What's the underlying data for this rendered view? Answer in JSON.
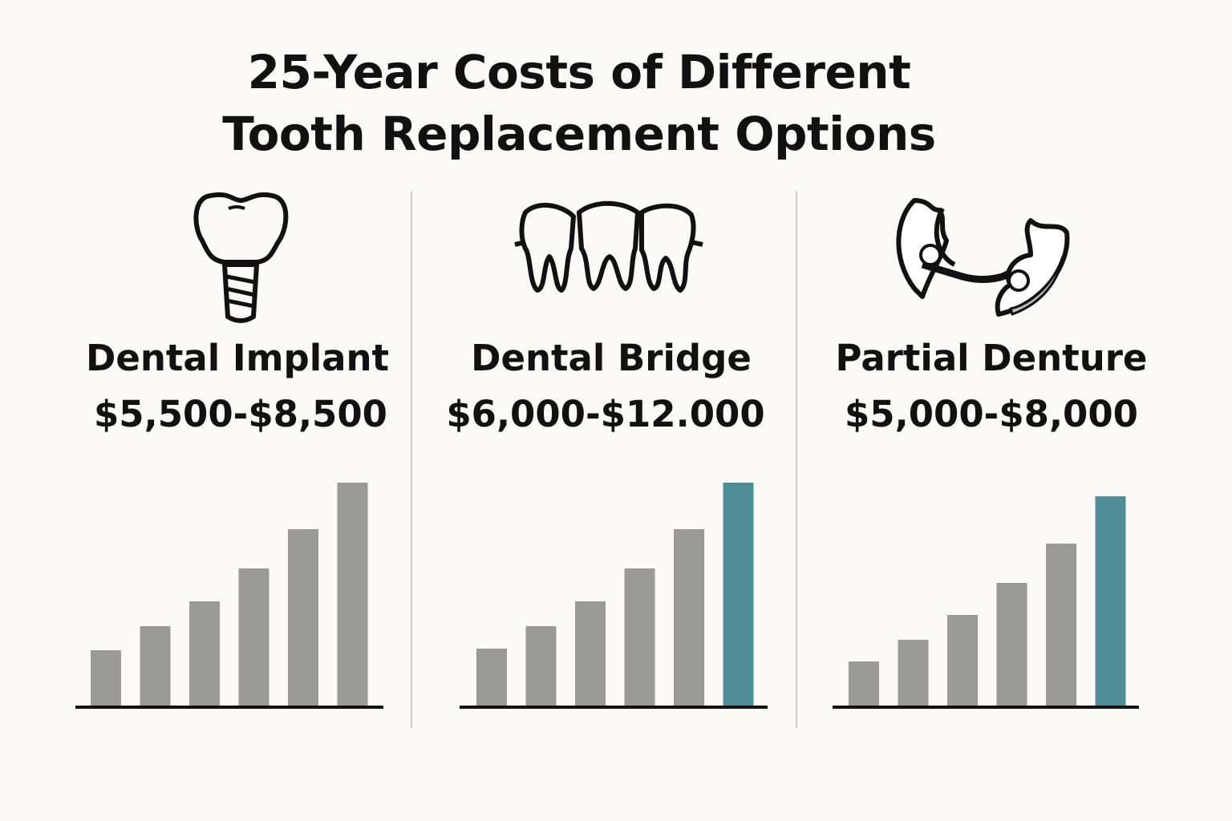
{
  "title": "25-Year Costs of Different Tooth Replacement Options",
  "chart_data": [
    {
      "type": "bar",
      "title": "Dental Implant",
      "subtitle": "$5,500-$8,500",
      "values": [
        71,
        101,
        132,
        173,
        222,
        280
      ],
      "colors": [
        "#9a9a98",
        "#9a9a98",
        "#9a9a98",
        "#9a9a98",
        "#9a9a98",
        "#9a9a98"
      ],
      "ylim": [
        0,
        280
      ]
    },
    {
      "type": "bar",
      "title": "Dental Bridge",
      "subtitle": "$6,000-$12.000",
      "values": [
        73,
        101,
        132,
        173,
        222,
        280
      ],
      "colors": [
        "#9a9a98",
        "#9a9a98",
        "#9a9a98",
        "#9a9a98",
        "#9a9a98",
        "#4f8e96"
      ],
      "ylim": [
        0,
        280
      ]
    },
    {
      "type": "bar",
      "title": "Partial Denture",
      "subtitle": "$5,000-$8,000",
      "values": [
        57,
        84,
        115,
        155,
        204,
        263
      ],
      "colors": [
        "#9a9a98",
        "#9a9a98",
        "#9a9a98",
        "#9a9a98",
        "#9a9a98",
        "#4f8e96"
      ],
      "ylim": [
        0,
        280
      ]
    }
  ]
}
